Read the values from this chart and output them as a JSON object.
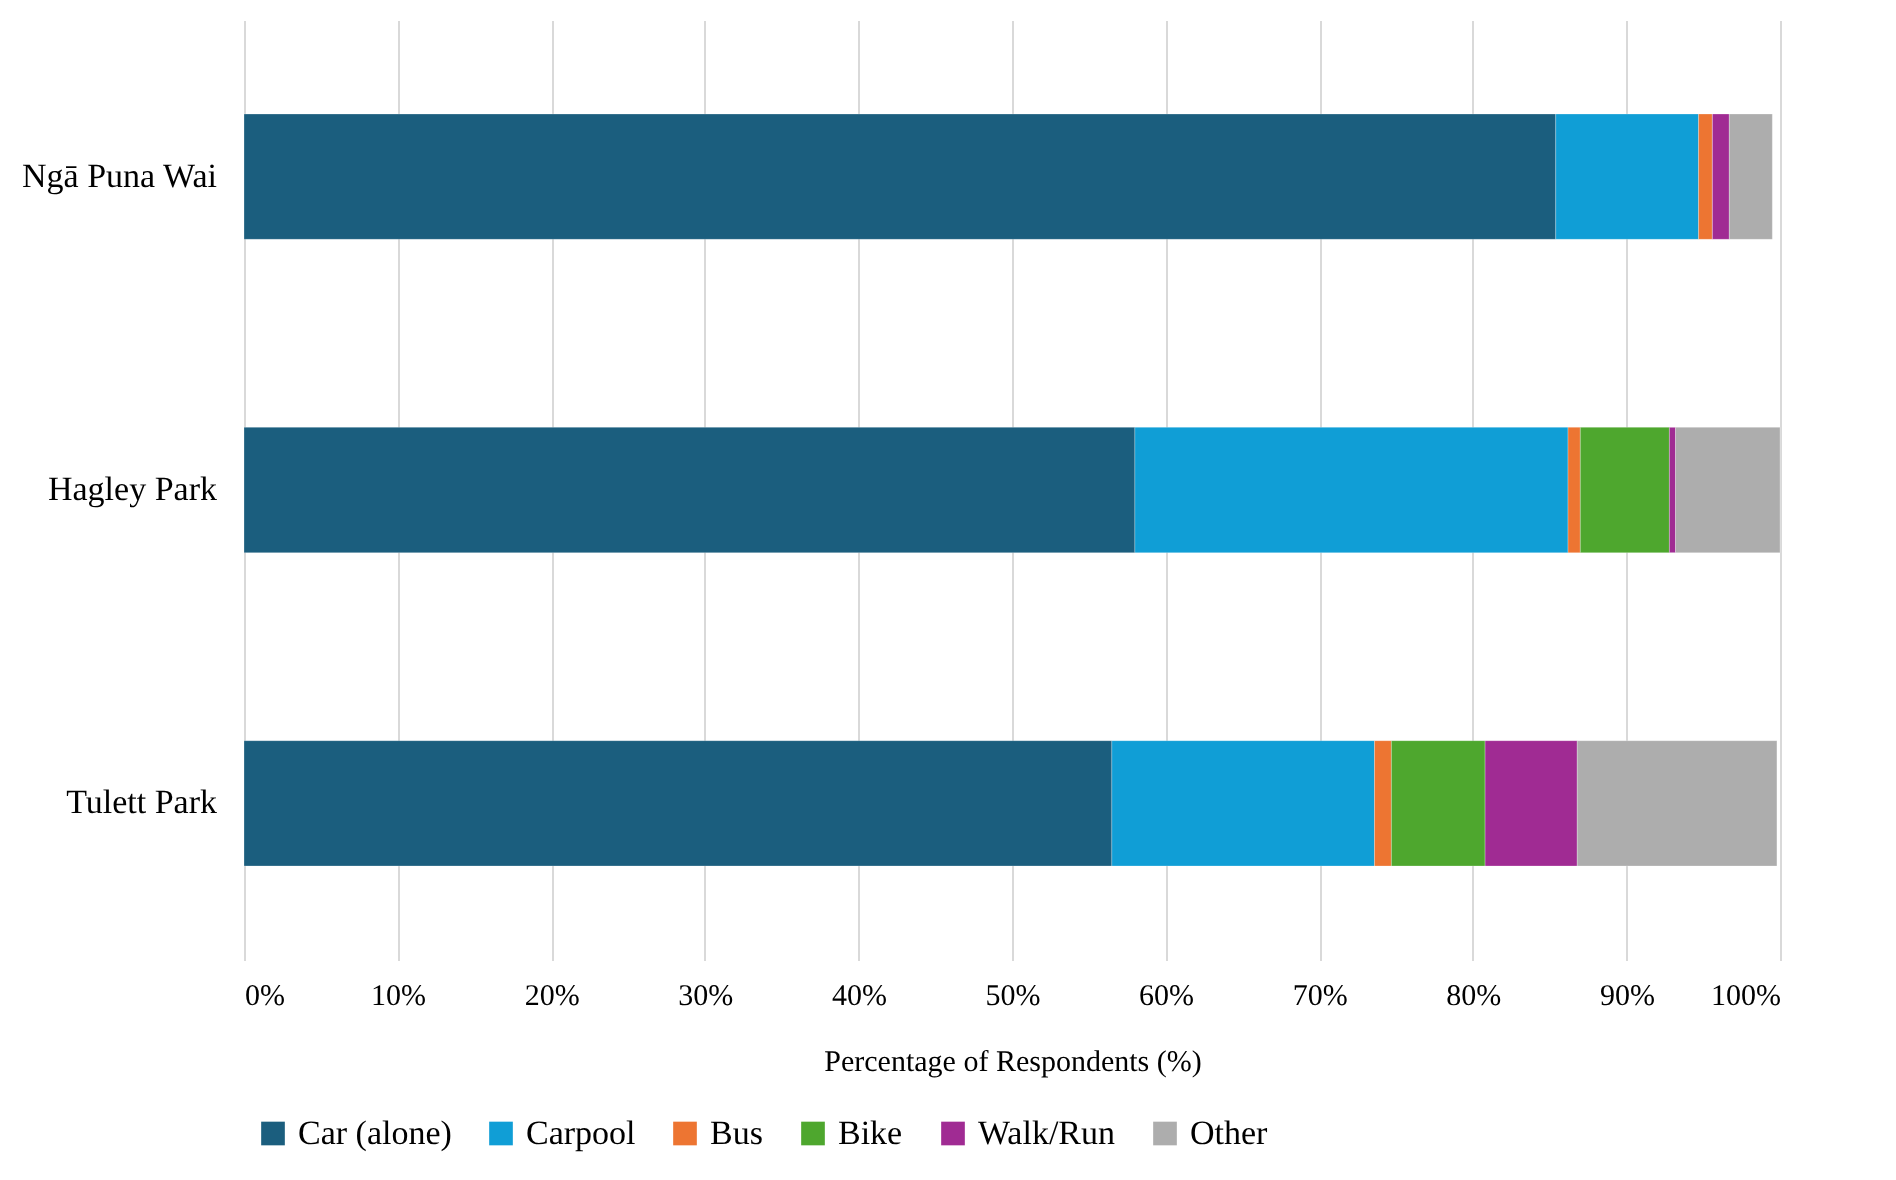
{
  "chart_data": {
    "type": "bar",
    "orientation": "horizontal",
    "stacked": true,
    "xlabel": "Percentage of Respondents (%)",
    "categories": [
      "Ngā Puna Wai",
      "Hagley Park",
      "Tulett Park"
    ],
    "series": [
      {
        "name": "Car (alone)",
        "color": "#1b5e7e",
        "values": [
          85.4,
          58.0,
          56.5
        ]
      },
      {
        "name": "Carpool",
        "color": "#109ed6",
        "values": [
          9.3,
          28.2,
          17.1
        ]
      },
      {
        "name": "Bus",
        "color": "#ed7532",
        "values": [
          0.9,
          0.8,
          1.1
        ]
      },
      {
        "name": "Bike",
        "color": "#4ea72e",
        "values": [
          0,
          5.8,
          6.1
        ]
      },
      {
        "name": "Walk/Run",
        "color": "#a02b93",
        "values": [
          1.1,
          0.4,
          6.0
        ]
      },
      {
        "name": "Other",
        "color": "#adadad",
        "values": [
          2.8,
          6.8,
          13.0
        ]
      }
    ],
    "xlim": [
      0,
      100
    ],
    "xticks": [
      {
        "value": 0,
        "label": "0%"
      },
      {
        "value": 10,
        "label": "10%"
      },
      {
        "value": 20,
        "label": "20%"
      },
      {
        "value": 30,
        "label": "30%"
      },
      {
        "value": 40,
        "label": "40%"
      },
      {
        "value": 50,
        "label": "50%"
      },
      {
        "value": 60,
        "label": "60%"
      },
      {
        "value": 70,
        "label": "70%"
      },
      {
        "value": 80,
        "label": "80%"
      },
      {
        "value": 90,
        "label": "90%"
      },
      {
        "value": 100,
        "label": "100%"
      }
    ],
    "grid": "x",
    "legend": "bottom"
  }
}
